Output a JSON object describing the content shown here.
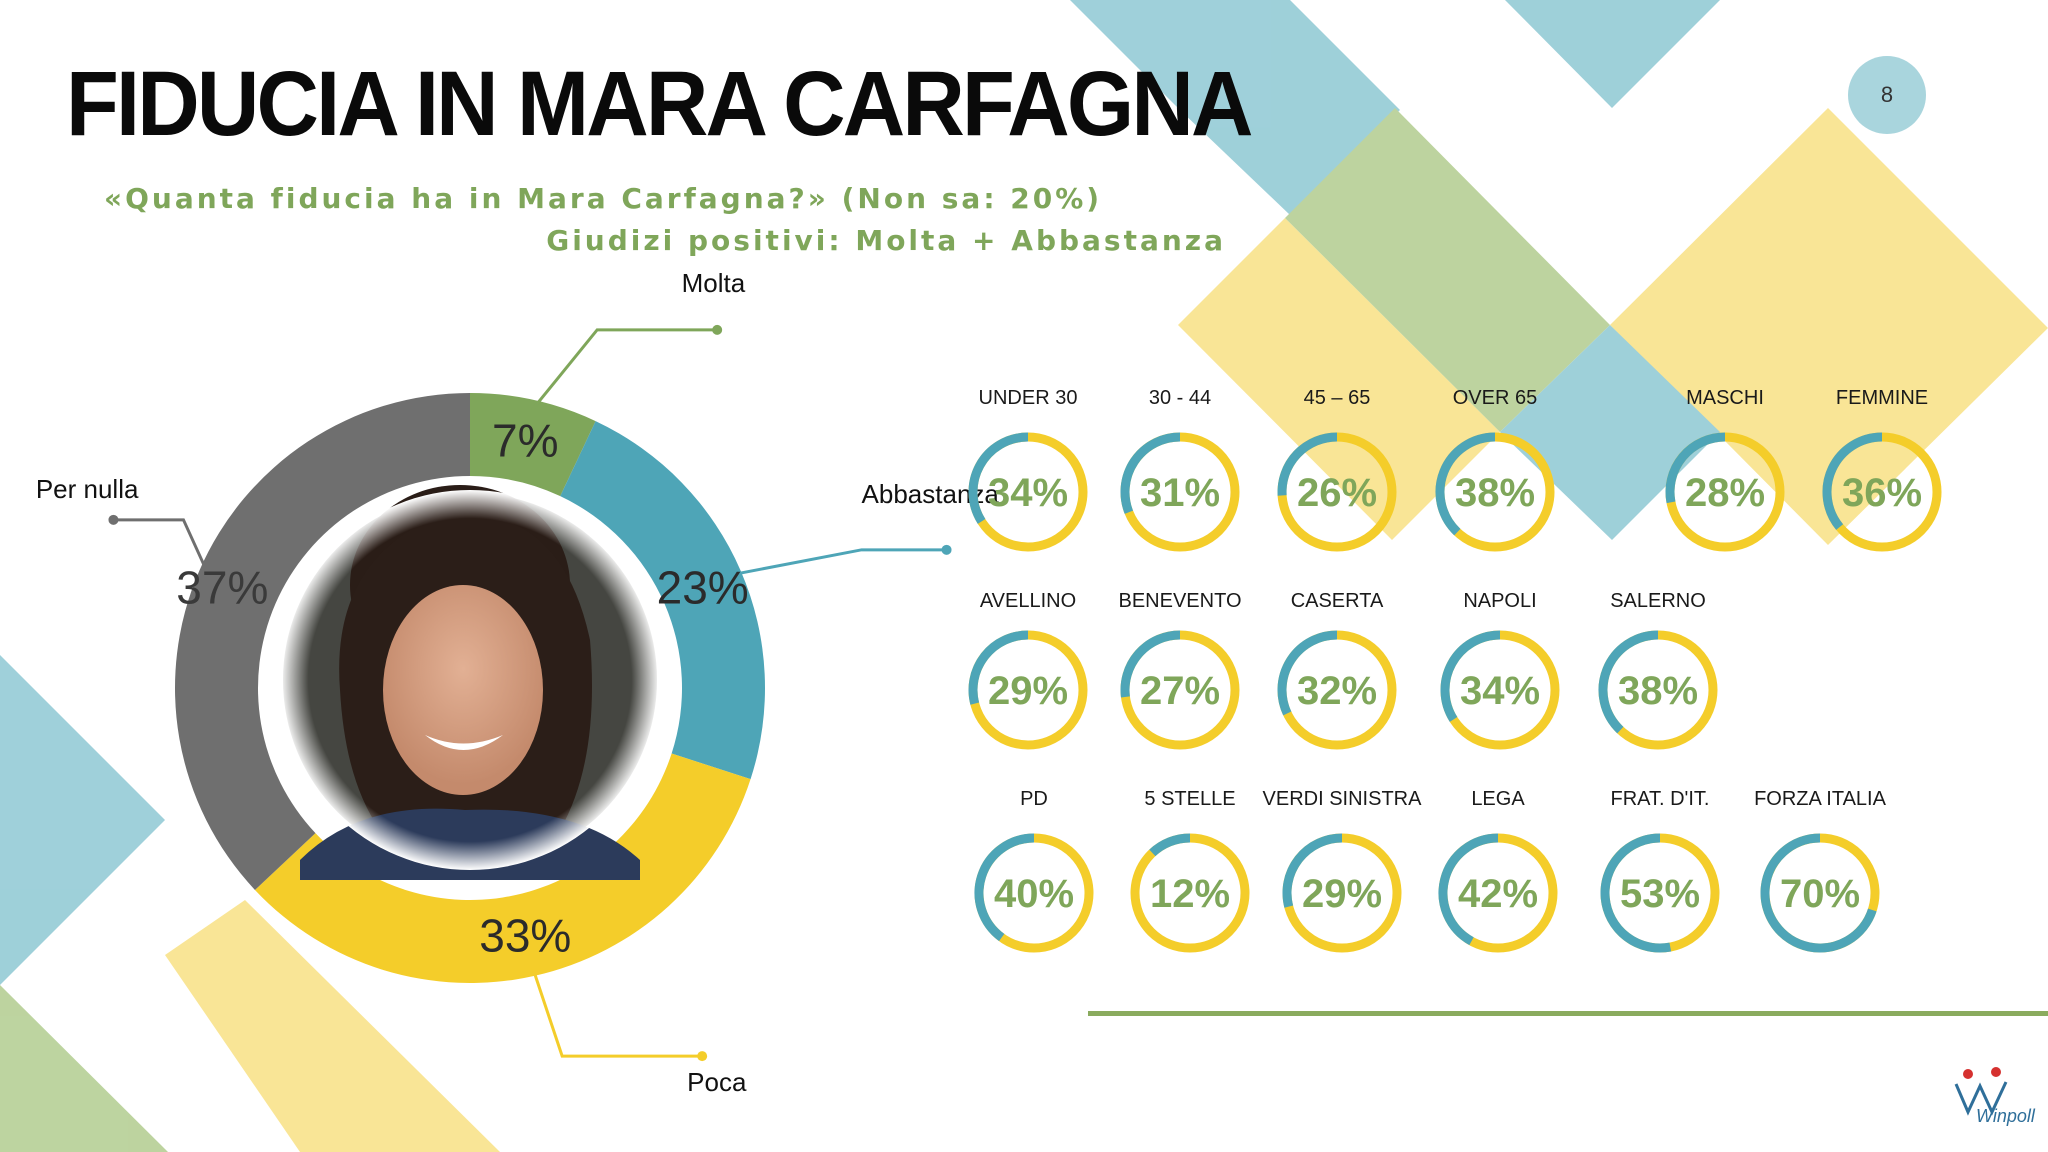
{
  "slide": {
    "title": "FIDUCIA IN MARA CARFAGNA",
    "question": "«Quanta fiducia ha in Mara Carfagna?» (Non sa: 20%)",
    "note": "Giudizi positivi: Molta + Abbastanza",
    "page_number": "8",
    "logo_text": "Winpoll"
  },
  "colors": {
    "green": "#7fa65a",
    "teal": "#4ea5b7",
    "yellow": "#f4cd2a",
    "gray": "#6f6f6f",
    "light_teal": "#8ec8d3",
    "light_green": "#b2cc8f",
    "light_yellow": "#f8e184"
  },
  "chart_data": [
    {
      "type": "pie",
      "style": "donut",
      "categories": [
        "Molta",
        "Abbastanza",
        "Poca",
        "Per nulla"
      ],
      "values": [
        7,
        23,
        33,
        37
      ],
      "value_labels": [
        "7%",
        "23%",
        "33%",
        "37%"
      ],
      "colors": [
        "#7fa65a",
        "#4ea5b7",
        "#f4cd2a",
        "#6f6f6f"
      ],
      "center_image": "portrait-photo"
    },
    {
      "type": "pie",
      "style": "small multiple donut gauges",
      "groups": [
        {
          "items": [
            {
              "label": "UNDER 30",
              "value": 34,
              "text": "34%"
            },
            {
              "label": "30 - 44",
              "value": 31,
              "text": "31%"
            },
            {
              "label": "45 – 65",
              "value": 26,
              "text": "26%"
            },
            {
              "label": "OVER 65",
              "value": 38,
              "text": "38%"
            },
            {
              "label": "MASCHI",
              "value": 28,
              "text": "28%"
            },
            {
              "label": "FEMMINE",
              "value": 36,
              "text": "36%"
            }
          ]
        },
        {
          "items": [
            {
              "label": "AVELLINO",
              "value": 29,
              "text": "29%"
            },
            {
              "label": "BENEVENTO",
              "value": 27,
              "text": "27%"
            },
            {
              "label": "CASERTA",
              "value": 32,
              "text": "32%"
            },
            {
              "label": "NAPOLI",
              "value": 34,
              "text": "34%"
            },
            {
              "label": "SALERNO",
              "value": 38,
              "text": "38%"
            }
          ]
        },
        {
          "items": [
            {
              "label": "PD",
              "value": 40,
              "text": "40%"
            },
            {
              "label": "5 STELLE",
              "value": 12,
              "text": "12%"
            },
            {
              "label": "VERDI SINISTRA",
              "value": 29,
              "text": "29%"
            },
            {
              "label": "LEGA",
              "value": 42,
              "text": "42%"
            },
            {
              "label": "FRAT. D'IT.",
              "value": 53,
              "text": "53%"
            },
            {
              "label": "FORZA ITALIA",
              "value": 70,
              "text": "70%"
            }
          ]
        }
      ]
    }
  ]
}
